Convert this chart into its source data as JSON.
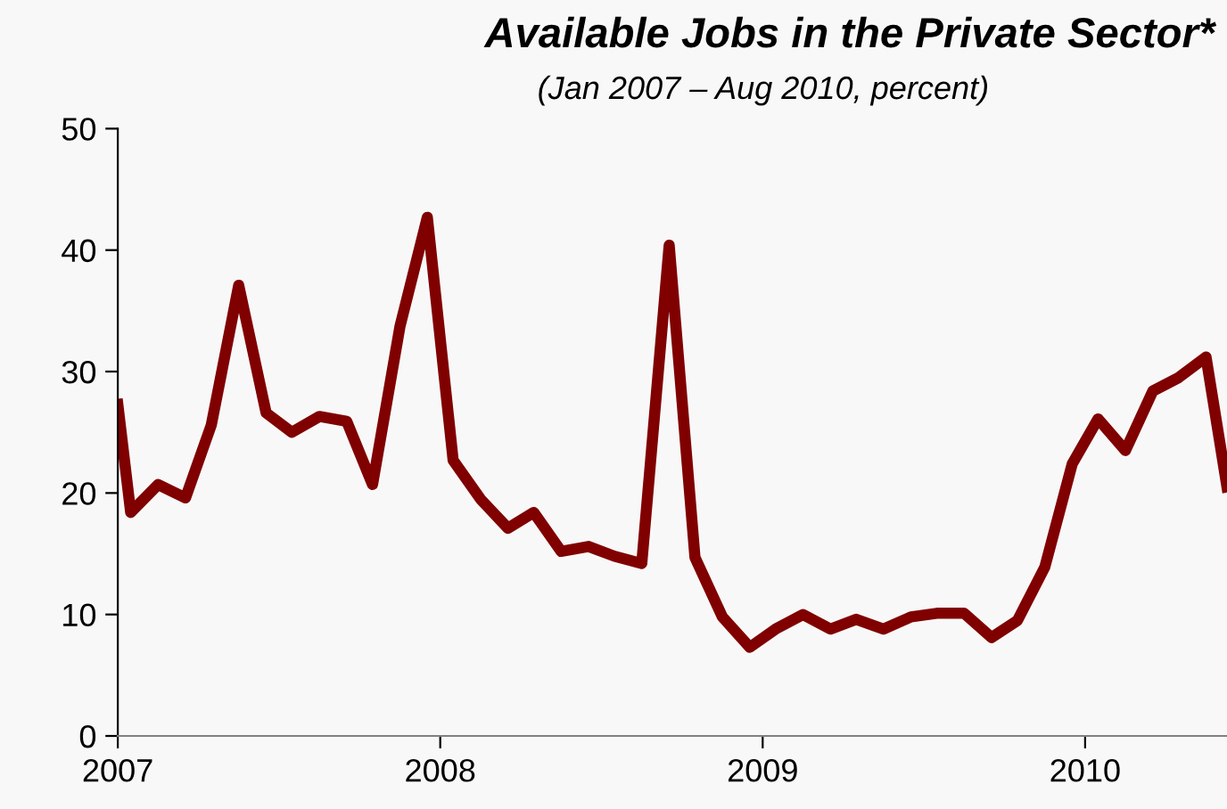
{
  "chart_data": {
    "type": "line",
    "title": "Available Jobs in the Private Sector*",
    "subtitle": "(Jan 2007 – Aug 2010, percent)",
    "x": [
      2007.0,
      2007.04,
      2007.125,
      2007.21,
      2007.29,
      2007.375,
      2007.46,
      2007.54,
      2007.625,
      2007.71,
      2007.79,
      2007.875,
      2007.96,
      2008.04,
      2008.125,
      2008.21,
      2008.29,
      2008.375,
      2008.46,
      2008.54,
      2008.625,
      2008.71,
      2008.79,
      2008.875,
      2008.96,
      2009.04,
      2009.125,
      2009.21,
      2009.29,
      2009.375,
      2009.46,
      2009.54,
      2009.625,
      2009.71,
      2009.79,
      2009.875,
      2009.96,
      2010.04,
      2010.125,
      2010.21,
      2010.29,
      2010.375,
      2010.44
    ],
    "series": [
      {
        "color": "#800000",
        "values": [
          27.3,
          18.4,
          20.7,
          19.6,
          25.6,
          37.1,
          26.6,
          25.0,
          26.3,
          25.9,
          20.7,
          33.7,
          42.7,
          22.7,
          19.5,
          17.1,
          18.4,
          15.2,
          15.6,
          14.8,
          14.2,
          40.4,
          14.7,
          9.8,
          7.3,
          8.8,
          10.0,
          8.8,
          9.6,
          8.8,
          9.8,
          10.1,
          10.1,
          8.1,
          9.5,
          13.9,
          22.4,
          26.1,
          23.5,
          28.4,
          29.5,
          31.2,
          20.5
        ]
      }
    ],
    "xlim": [
      2007,
      2010.44
    ],
    "xticks": [
      2007,
      2008,
      2009,
      2010
    ],
    "ylim": [
      0,
      50
    ],
    "yticks": [
      0,
      10,
      20,
      30,
      40,
      50
    ],
    "grid": false,
    "marker": "none",
    "line_style": "solid"
  }
}
